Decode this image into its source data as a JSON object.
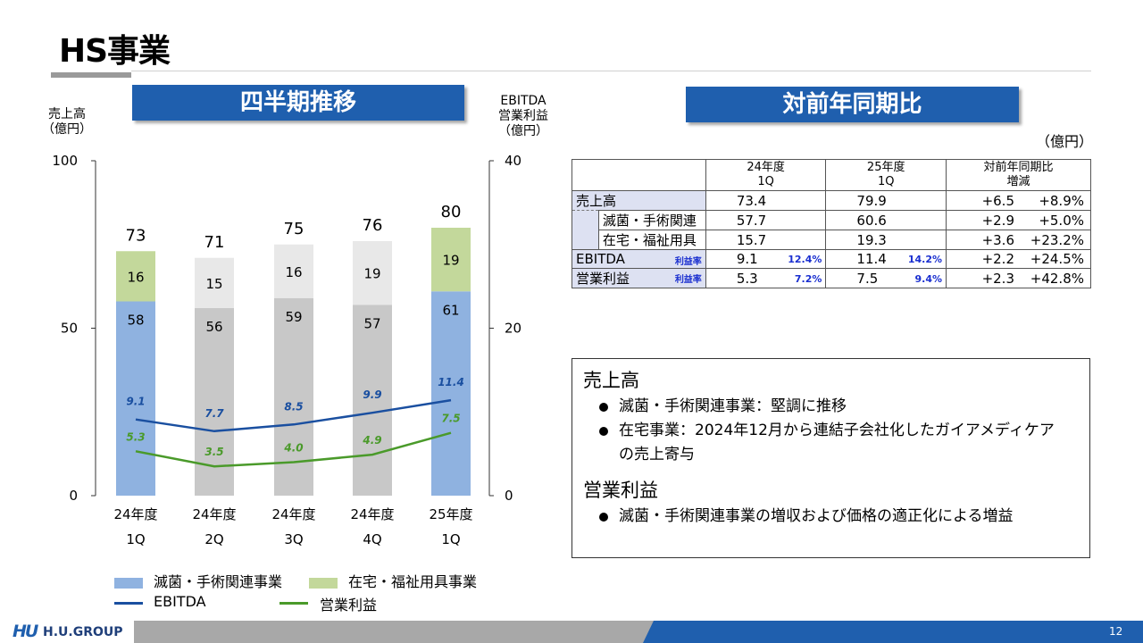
{
  "header": {
    "title": "HS事業",
    "page_number": "12"
  },
  "left_banner": "四半期推移",
  "right_banner": "対前年同期比",
  "chart_data": {
    "type": "bar",
    "left_axis_label": [
      "売上高",
      "（億円）"
    ],
    "right_axis_label": [
      "EBITDA",
      "営業利益",
      "（億円）"
    ],
    "left_ticks": [
      "100",
      "50",
      "0"
    ],
    "right_ticks": [
      "40",
      "20",
      "0"
    ],
    "ylim_left": [
      0,
      100
    ],
    "ylim_right": [
      0,
      40
    ],
    "categories": [
      [
        "24年度",
        "1Q"
      ],
      [
        "24年度",
        "2Q"
      ],
      [
        "24年度",
        "3Q"
      ],
      [
        "24年度",
        "4Q"
      ],
      [
        "25年度",
        "1Q"
      ]
    ],
    "stacks": [
      {
        "name": "滅菌・手術関連事業",
        "values": [
          58,
          56,
          59,
          57,
          61
        ],
        "labels": [
          "58",
          "56",
          "59",
          "57",
          "61"
        ]
      },
      {
        "name": "在宅・福祉用具事業",
        "values": [
          16,
          15,
          16,
          19,
          19
        ],
        "labels": [
          "16",
          "15",
          "16",
          "19",
          "19"
        ]
      }
    ],
    "totals": [
      "73",
      "71",
      "75",
      "76",
      "80"
    ],
    "total_values": [
      73,
      71,
      75,
      76,
      80
    ],
    "highlight_index": [
      0,
      4
    ],
    "lines": [
      {
        "name": "EBITDA",
        "values": [
          9.1,
          7.7,
          8.5,
          9.9,
          11.4
        ],
        "labels": [
          "9.1",
          "7.7",
          "8.5",
          "9.9",
          "11.4"
        ],
        "color": "#1a4fa0"
      },
      {
        "name": "営業利益",
        "values": [
          5.3,
          3.5,
          4.0,
          4.9,
          7.5
        ],
        "labels": [
          "5.3",
          "3.5",
          "4.0",
          "4.9",
          "7.5"
        ],
        "color": "#4a9a2a"
      }
    ],
    "colors": {
      "seg1_highlight": "#8fb2e0",
      "seg2_highlight": "#c3d89b",
      "seg1_normal": "#c8c8c8",
      "seg2_normal": "#e8e8e8"
    },
    "legend": {
      "seg1": "滅菌・手術関連事業",
      "seg2": "在宅・福祉用具事業",
      "line1": "EBITDA",
      "line2": "営業利益"
    }
  },
  "table": {
    "unit": "（億円）",
    "headers": {
      "col1_top": "24年度",
      "col1_bottom": "1Q",
      "col2_top": "25年度",
      "col2_bottom": "1Q",
      "col3_top": "対前年同期比",
      "col3_bottom": "増減"
    },
    "rows": {
      "sales": {
        "label": "売上高",
        "v24": "73.4",
        "v25": "79.9",
        "diff": "+6.5",
        "pct": "+8.9%"
      },
      "steril": {
        "label": "滅菌・手術関連",
        "v24": "57.7",
        "v25": "60.6",
        "diff": "+2.9",
        "pct": "+5.0%"
      },
      "home": {
        "label": "在宅・福祉用具",
        "v24": "15.7",
        "v25": "19.3",
        "diff": "+3.6",
        "pct": "+23.2%"
      },
      "ebitda": {
        "label": "EBITDA",
        "rate_label": "利益率",
        "v24": "9.1",
        "r24": "12.4%",
        "v25": "11.4",
        "r25": "14.2%",
        "diff": "+2.2",
        "pct": "+24.5%"
      },
      "op": {
        "label": "営業利益",
        "rate_label": "利益率",
        "v24": "5.3",
        "r24": "7.2%",
        "v25": "7.5",
        "r25": "9.4%",
        "diff": "+2.3",
        "pct": "+42.8%"
      }
    }
  },
  "notes": {
    "h1": "売上高",
    "b1": "滅菌・手術関連事業：堅調に推移",
    "b2": "在宅事業：2024年12月から連結子会社化したガイアメディケアの売上寄与",
    "h2": "営業利益",
    "b3": "滅菌・手術関連事業の増収および価格の適正化による増益"
  },
  "footer": {
    "logo_mark": "HU",
    "logo_text": "H.U.GROUP"
  }
}
